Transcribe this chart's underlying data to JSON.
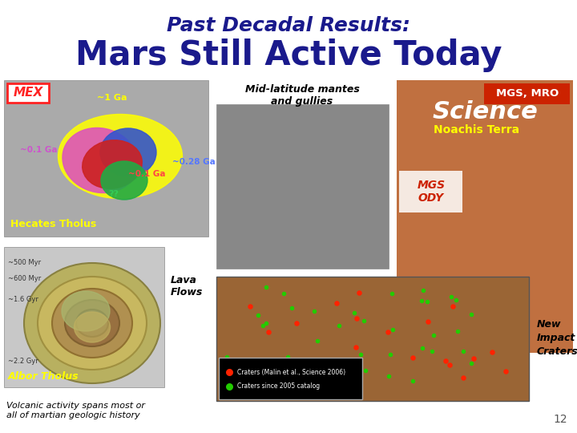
{
  "title_line1": "Past Decadal Results:",
  "title_line2": "Mars Still Active Today",
  "title_color": "#1a1a8c",
  "title1_fontsize": 18,
  "title2_fontsize": 30,
  "bg_color": "#ffffff",
  "page_number": "12",
  "label_mex": "MEX",
  "label_mid": "Mid-latitude mantes\nand gullies",
  "label_mgs_mro": "MGS, MRO",
  "label_noachis": "Noachis Terra",
  "label_mgs_ody": "MGS\nODY",
  "label_hecates": "Hecates Tholus",
  "label_lava": "Lava\nFlows",
  "label_albor": "Albor Tholus",
  "label_volcanic": "Volcanic activity spans most or\nall of martian geologic history",
  "label_new_impact": "New\nImpact\nCraters",
  "hecates_blob_colors": [
    "#ffff00",
    "#dd55bb",
    "#3355cc",
    "#cc2222",
    "#22aa44"
  ],
  "science_cover_color": "#c07040",
  "mgs_mro_box_color": "#cc2200",
  "noachis_color": "#ffff00",
  "mgs_ody_color": "#cc2200",
  "gully_img_color": "#909090",
  "crater_map_color": "#9a6535",
  "albor_ring_colors": [
    "#c8b870",
    "#b8a050",
    "#a08030",
    "#887020"
  ],
  "albor_bg_color": "#c8c8c8"
}
